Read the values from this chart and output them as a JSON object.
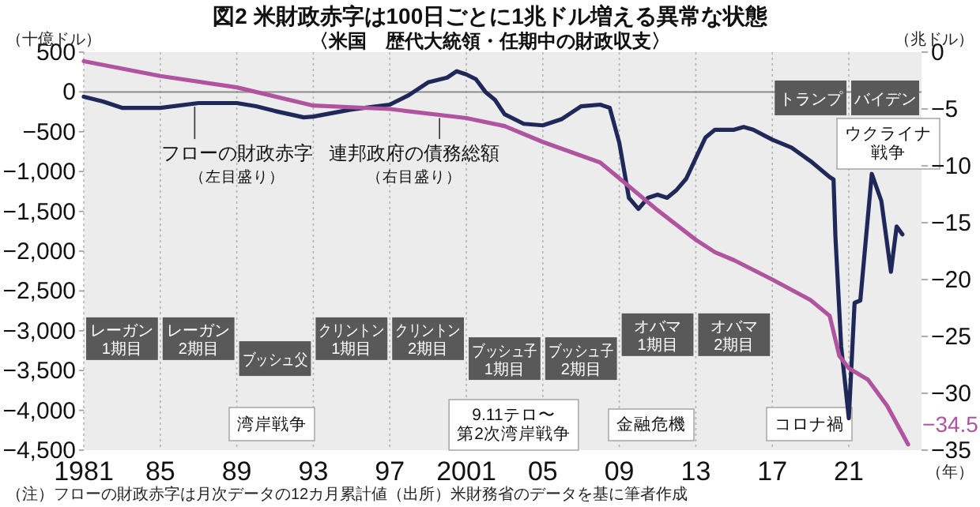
{
  "chart_data": {
    "type": "line",
    "title": "図2 米財政赤字は100日ごとに1兆ドル増える異常な状態",
    "subtitle": "〈米国　歴代大統領・任期中の財政収支〉",
    "ylabel": "（十億ドル）",
    "y2label": "（兆ドル）",
    "xlabel": "（年）",
    "xlim": [
      1981,
      2024.8
    ],
    "xticks": [
      1981,
      {
        "value": 1985,
        "label": "85"
      },
      {
        "value": 1989,
        "label": "89"
      },
      {
        "value": 1993,
        "label": "93"
      },
      {
        "value": 1997,
        "label": "97"
      },
      2001,
      {
        "value": 2005,
        "label": "05"
      },
      {
        "value": 2009,
        "label": "09"
      },
      {
        "value": 2013,
        "label": "13"
      },
      {
        "value": 2017,
        "label": "17"
      },
      {
        "value": 2021,
        "label": "21"
      }
    ],
    "ylim": [
      -4500,
      500
    ],
    "yticks": [
      500,
      0,
      {
        "value": -500,
        "label": "−500"
      },
      {
        "value": -1000,
        "label": "−1,000"
      },
      {
        "value": -1500,
        "label": "−1,500"
      },
      {
        "value": -2000,
        "label": "−2,000"
      },
      {
        "value": -2500,
        "label": "−2,500"
      },
      {
        "value": -3000,
        "label": "−3,000"
      },
      {
        "value": -3500,
        "label": "−3,500"
      },
      {
        "value": -4000,
        "label": "−4,000"
      },
      {
        "value": -4500,
        "label": "−4,500"
      }
    ],
    "y2lim": [
      -35,
      0
    ],
    "y2ticks": [
      0,
      {
        "value": -5,
        "label": "−5"
      },
      {
        "value": -10,
        "label": "−10"
      },
      {
        "value": -15,
        "label": "−15"
      },
      {
        "value": -20,
        "label": "−20"
      },
      {
        "value": -25,
        "label": "−25"
      },
      {
        "value": -30,
        "label": "−30"
      },
      {
        "value": -35,
        "label": "−35"
      }
    ],
    "grid": "x",
    "ref_lines": [
      {
        "axis": "y",
        "value": 0,
        "color": "#8c8c8c"
      }
    ],
    "series": [
      {
        "name": "フローの財政赤字（左目盛り）",
        "color": "#1f2858",
        "x": [
          1981,
          1982,
          1983,
          1985,
          1987,
          1989,
          1990,
          1991,
          1992.5,
          1993,
          1995,
          1997,
          1998,
          1999,
          2000,
          2000.5,
          2001,
          2001.5,
          2002,
          2002.5,
          2003,
          2004,
          2005,
          2006,
          2007,
          2008,
          2008.5,
          2009,
          2009.5,
          2010,
          2010.5,
          2011,
          2011.5,
          2012,
          2012.5,
          2013,
          2013.5,
          2014,
          2015,
          2015.5,
          2016,
          2017,
          2018,
          2019,
          2020,
          2020.2,
          2020.3,
          2020.6,
          2021,
          2021.3,
          2021.6,
          2022.2,
          2022.7,
          2023.2,
          2023.5,
          2023.8
        ],
        "values": [
          -60,
          -120,
          -200,
          -200,
          -140,
          -140,
          -180,
          -240,
          -320,
          -310,
          -220,
          -160,
          -40,
          120,
          180,
          260,
          220,
          160,
          0,
          -100,
          -280,
          -400,
          -420,
          -340,
          -180,
          -160,
          -200,
          -640,
          -1330,
          -1470,
          -1330,
          -1290,
          -1330,
          -1230,
          -1090,
          -830,
          -575,
          -475,
          -475,
          -440,
          -475,
          -600,
          -700,
          -870,
          -1070,
          -1100,
          -1825,
          -3200,
          -4100,
          -2650,
          -2620,
          -1030,
          -1370,
          -2260,
          -1690,
          -1790
        ]
      },
      {
        "name": "連邦政府の債務総額（右目盛り）",
        "color": "#b0549f",
        "axis": "y2",
        "x": [
          1981,
          1985,
          1989,
          1993,
          1997,
          2001,
          2003,
          2005,
          2008,
          2009,
          2011,
          2013,
          2014,
          2015,
          2017,
          2019,
          2020,
          2020.5,
          2021,
          2022,
          2023,
          2024.1
        ],
        "values": [
          -0.8,
          -2.1,
          -3.1,
          -4.7,
          -5.0,
          -5.8,
          -6.5,
          -7.9,
          -9.7,
          -11.1,
          -13.9,
          -16.5,
          -17.6,
          -18.3,
          -20,
          -21.8,
          -23.2,
          -26.7,
          -27.8,
          -28.8,
          -31.1,
          -34.5
        ],
        "value_labels": [
          null,
          null,
          null,
          null,
          null,
          null,
          null,
          null,
          null,
          null,
          null,
          null,
          null,
          null,
          null,
          null,
          null,
          null,
          null,
          null,
          null,
          "−34.5"
        ]
      }
    ],
    "bands": [
      {
        "axis": "x",
        "from": 1981,
        "to": 1985,
        "label": "レーガン\n1期目",
        "color": "#595959"
      },
      {
        "axis": "x",
        "from": 1985,
        "to": 1989,
        "label": "レーガン\n2期目",
        "color": "#595959"
      },
      {
        "axis": "x",
        "from": 1989,
        "to": 1993,
        "label": "ブッシュ父",
        "color": "#595959"
      },
      {
        "axis": "x",
        "from": 1993,
        "to": 1997,
        "label": "クリントン\n1期目",
        "color": "#595959"
      },
      {
        "axis": "x",
        "from": 1997,
        "to": 2001,
        "label": "クリントン\n2期目",
        "color": "#595959"
      },
      {
        "axis": "x",
        "from": 2001,
        "to": 2005,
        "label": "ブッシュ子\n1期目",
        "color": "#595959"
      },
      {
        "axis": "x",
        "from": 2005,
        "to": 2009,
        "label": "ブッシュ子\n2期目",
        "color": "#595959"
      },
      {
        "axis": "x",
        "from": 2009,
        "to": 2013,
        "label": "オバマ\n1期目",
        "color": "#595959"
      },
      {
        "axis": "x",
        "from": 2013,
        "to": 2017,
        "label": "オバマ\n2期目",
        "color": "#595959"
      },
      {
        "axis": "x",
        "from": 2017,
        "to": 2021,
        "label": "トランプ",
        "color": "#595959"
      },
      {
        "axis": "x",
        "from": 2021,
        "to": 2024.8,
        "label": "バイデン",
        "color": "#595959"
      }
    ],
    "annotations": [
      "湾岸戦争",
      "9.11テロ〜第2次湾岸戦争",
      "金融危機",
      "コロナ禍",
      "ウクライナ戦争",
      "（注）フローの財政赤字は月次データの12カ月累計値（出所）米財務省のデータを基に筆者作成"
    ]
  }
}
